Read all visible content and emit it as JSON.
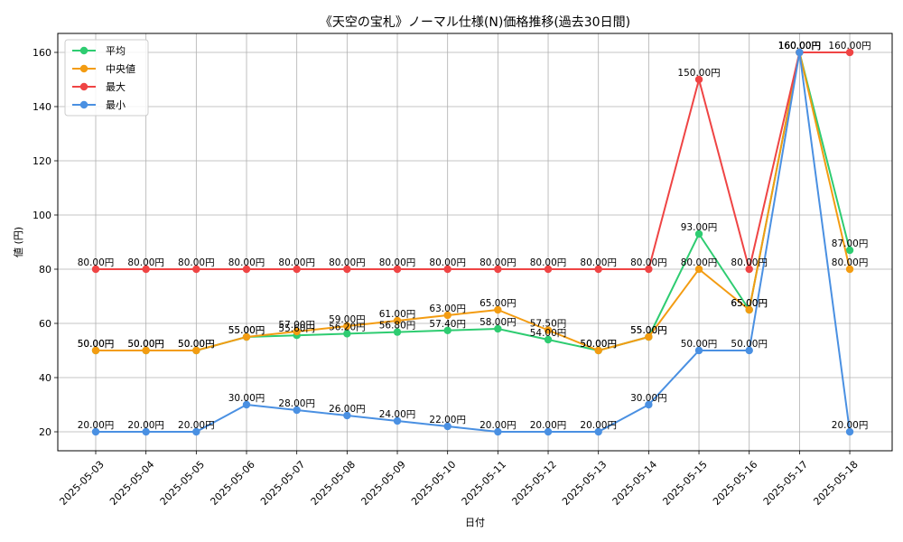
{
  "chart_data": {
    "type": "line",
    "title": "《天空の宝札》ノーマル仕様(N)価格推移(過去30日間)",
    "xlabel": "日付",
    "ylabel": "値 (円)",
    "ylim": [
      13,
      167
    ],
    "yticks": [
      20,
      40,
      60,
      80,
      100,
      120,
      140,
      160
    ],
    "grid": true,
    "legend_position": "top-left",
    "label_suffix": "円",
    "categories": [
      "2025-05-03",
      "2025-05-04",
      "2025-05-05",
      "2025-05-06",
      "2025-05-07",
      "2025-05-08",
      "2025-05-09",
      "2025-05-10",
      "2025-05-11",
      "2025-05-12",
      "2025-05-13",
      "2025-05-14",
      "2025-05-15",
      "2025-05-16",
      "2025-05-17",
      "2025-05-18"
    ],
    "series": [
      {
        "name": "平均",
        "color": "#2ecc71",
        "values": [
          50,
          50,
          50,
          55,
          55.6,
          56.2,
          56.8,
          57.4,
          58,
          54,
          50,
          55,
          93,
          65,
          160,
          87
        ]
      },
      {
        "name": "中央値",
        "color": "#f39c12",
        "values": [
          50,
          50,
          50,
          55,
          57,
          59,
          61,
          63,
          65,
          57.5,
          50,
          55,
          80,
          65,
          160,
          80
        ]
      },
      {
        "name": "最大",
        "color": "#ef4444",
        "values": [
          80,
          80,
          80,
          80,
          80,
          80,
          80,
          80,
          80,
          80,
          80,
          80,
          150,
          80,
          160,
          160
        ]
      },
      {
        "name": "最小",
        "color": "#4a90e2",
        "values": [
          20,
          20,
          20,
          30,
          28,
          26,
          24,
          22,
          20,
          20,
          20,
          30,
          50,
          50,
          160,
          20
        ]
      }
    ]
  }
}
